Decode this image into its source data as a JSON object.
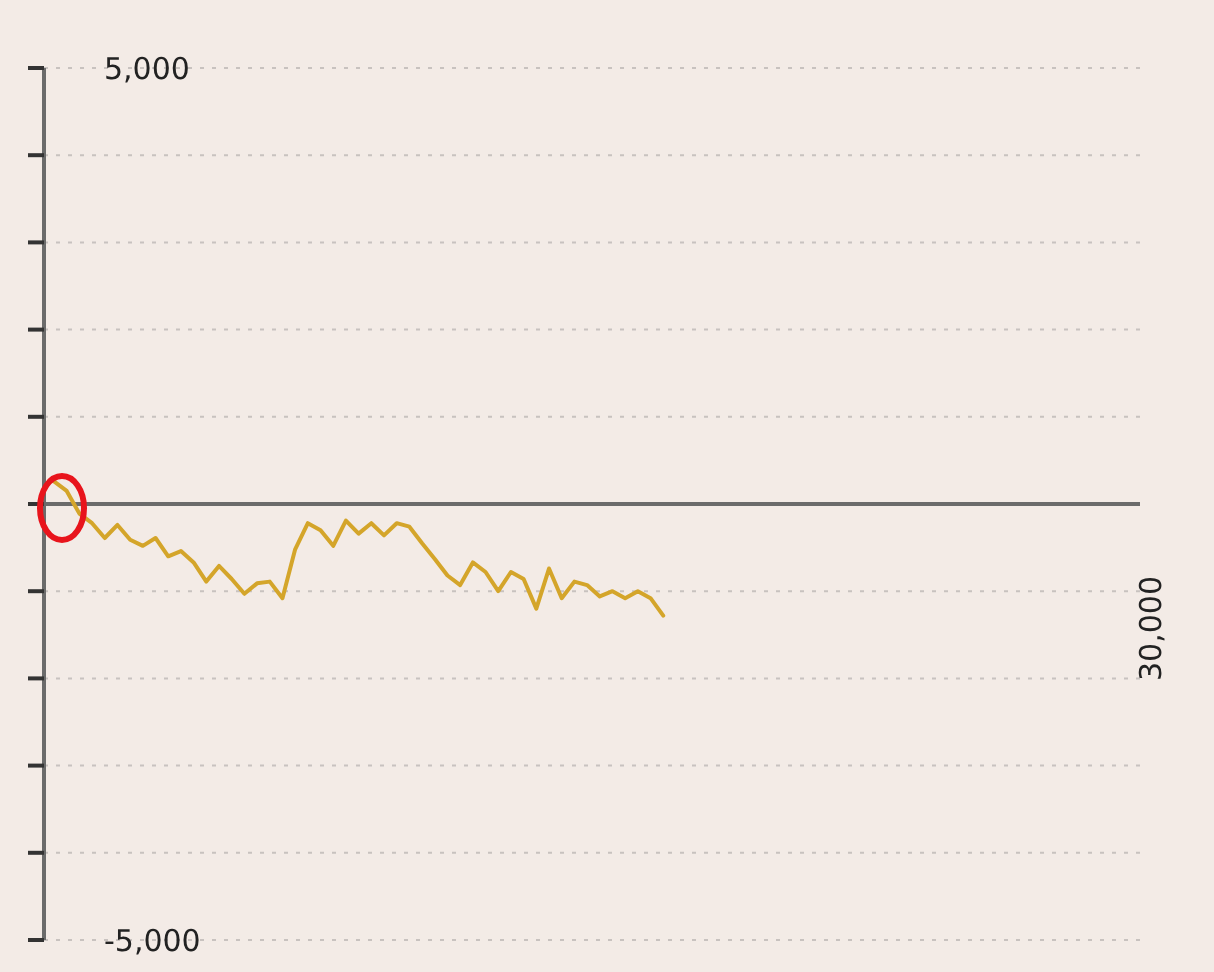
{
  "chart_data": {
    "type": "line",
    "categories": [
      null,
      null,
      null,
      null,
      null,
      null,
      null,
      null,
      null,
      null,
      null,
      null,
      null,
      null,
      null,
      null,
      null,
      null,
      null,
      null,
      null,
      null,
      null,
      null,
      null,
      null,
      null,
      null,
      null,
      null,
      null,
      null,
      null,
      null,
      null,
      null,
      null,
      null,
      null,
      null,
      null,
      null,
      null,
      null,
      null,
      null,
      null,
      null,
      null
    ],
    "series": [
      {
        "color": "#d4a52a",
        "values": [
          260,
          150,
          -110,
          -220,
          -390,
          -240,
          -410,
          -480,
          -390,
          -600,
          -540,
          -670,
          -890,
          -710,
          -860,
          -1030,
          -910,
          -890,
          -1080,
          -520,
          -220,
          -300,
          -480,
          -190,
          -340,
          -220,
          -360,
          -220,
          -260,
          -450,
          -630,
          -820,
          -930,
          -670,
          -780,
          -1000,
          -780,
          -860,
          -1200,
          -740,
          -1080,
          -890,
          -930,
          -1060,
          -1000,
          -1080,
          -1000,
          -1080,
          -1280
        ]
      }
    ],
    "annotations": [
      "30,000"
    ],
    "ylim": [
      -5000,
      5000
    ],
    "yticks": [
      {
        "value": 5000,
        "label": "5,000"
      },
      {
        "value": 4000,
        "label": null
      },
      {
        "value": 3000,
        "label": null
      },
      {
        "value": 2000,
        "label": null
      },
      {
        "value": 1000,
        "label": null
      },
      {
        "value": 0,
        "label": null
      },
      {
        "value": -1000,
        "label": null
      },
      {
        "value": -2000,
        "label": null
      },
      {
        "value": -3000,
        "label": null
      },
      {
        "value": -4000,
        "label": null
      },
      {
        "value": -5000,
        "label": "-5,000"
      }
    ],
    "grid": "y",
    "marker": "none",
    "line_style": "solid"
  }
}
